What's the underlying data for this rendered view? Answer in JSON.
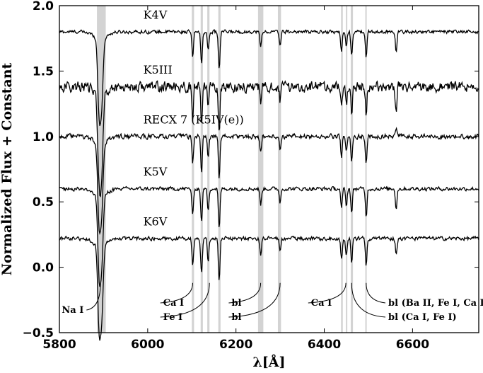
{
  "chart_data": {
    "type": "line",
    "xlabel": "λ[Å]",
    "ylabel": "Normalized Flux + Constant",
    "xlim": [
      5800,
      6750
    ],
    "ylim": [
      -0.5,
      2.0
    ],
    "xticks": [
      "5800",
      "6000",
      "6200",
      "6400",
      "6600"
    ],
    "yticks": [
      "−0.5",
      "0.0",
      "0.5",
      "1.0",
      "1.5",
      "2.0"
    ],
    "xtick_values": [
      5800,
      6000,
      6200,
      6400,
      6600
    ],
    "ytick_values": [
      -0.5,
      0.0,
      0.5,
      1.0,
      1.5,
      2.0
    ],
    "shaded_bands": [
      [
        5885,
        5905
      ],
      [
        6100,
        6105
      ],
      [
        6120,
        6125
      ],
      [
        6135,
        6140
      ],
      [
        6160,
        6165
      ],
      [
        6250,
        6262
      ],
      [
        6295,
        6302
      ],
      [
        6438,
        6442
      ],
      [
        6449,
        6452
      ],
      [
        6460,
        6465
      ],
      [
        6493,
        6496
      ]
    ],
    "series": [
      {
        "name": "K4V",
        "offset": 1.8,
        "noise": 0.018,
        "depth_scale": 1.0,
        "halpha": -0.15
      },
      {
        "name": "K5III",
        "offset": 1.38,
        "noise": 0.055,
        "depth_scale": 1.15,
        "halpha": -0.2
      },
      {
        "name": "RECX 7 (K5IV(e))",
        "offset": 1.0,
        "noise": 0.025,
        "depth_scale": 1.05,
        "halpha": 0.07
      },
      {
        "name": "K5V",
        "offset": 0.6,
        "noise": 0.02,
        "depth_scale": 1.05,
        "halpha": -0.15
      },
      {
        "name": "K6V",
        "offset": 0.22,
        "noise": 0.02,
        "depth_scale": 1.1,
        "halpha": -0.12
      }
    ],
    "spectral_lines": [
      {
        "wave": 5890,
        "depth": 0.55
      },
      {
        "wave": 5896,
        "depth": 0.45
      },
      {
        "wave": 6102,
        "depth": 0.2
      },
      {
        "wave": 6122,
        "depth": 0.25
      },
      {
        "wave": 6137,
        "depth": 0.15
      },
      {
        "wave": 6162,
        "depth": 0.3
      },
      {
        "wave": 6256,
        "depth": 0.12
      },
      {
        "wave": 6300,
        "depth": 0.1
      },
      {
        "wave": 6439,
        "depth": 0.15
      },
      {
        "wave": 6450,
        "depth": 0.12
      },
      {
        "wave": 6462,
        "depth": 0.18
      },
      {
        "wave": 6495,
        "depth": 0.2
      },
      {
        "wave": 6563,
        "depth": 0.0
      }
    ],
    "annotations": [
      {
        "text": "Na I",
        "wave": 5893
      },
      {
        "text": "Ca I",
        "wave": 6112
      },
      {
        "text": "Fe I",
        "wave": 6140
      },
      {
        "text": "bl",
        "wave": 6256
      },
      {
        "text": "bl",
        "wave": 6300
      },
      {
        "text": "Ca I",
        "wave": 6449
      },
      {
        "text": "bl (Ba II, Fe I, Ca I)",
        "wave": 6495
      },
      {
        "text": "bl (Ca I, Fe I)",
        "wave": 6462
      }
    ]
  }
}
